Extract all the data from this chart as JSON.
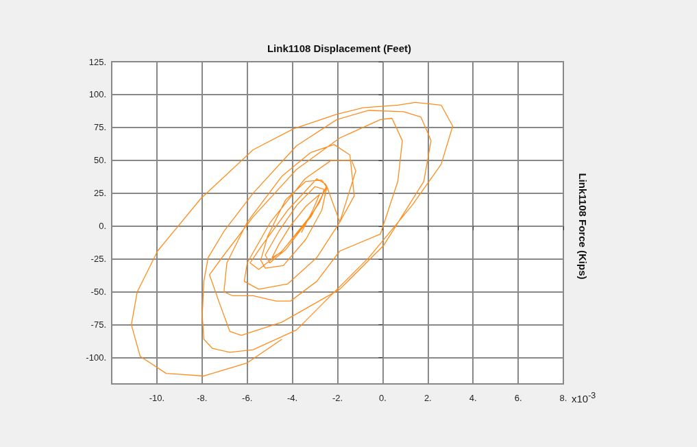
{
  "chart_data": {
    "type": "line",
    "title": "Link1108 Displacement (Feet)",
    "ylabel": "Link1108 Force (Kips)",
    "annotations": [
      "x10$^{-3}$"
    ],
    "xlim": [
      -12,
      8
    ],
    "xticks": [
      {
        "value": -10,
        "label": "-10."
      },
      {
        "value": -8,
        "label": "-8."
      },
      {
        "value": -6,
        "label": "-6."
      },
      {
        "value": -4,
        "label": "-4."
      },
      {
        "value": -2,
        "label": "-2."
      },
      {
        "value": 0,
        "label": "0."
      },
      {
        "value": 2,
        "label": "2."
      },
      {
        "value": 4,
        "label": "4."
      },
      {
        "value": 6,
        "label": "6."
      },
      {
        "value": 8,
        "label": "8."
      }
    ],
    "ylim": [
      -120,
      125
    ],
    "yticks": [
      {
        "value": -100,
        "label": "-100."
      },
      {
        "value": -75,
        "label": "-75."
      },
      {
        "value": -50,
        "label": "-50."
      },
      {
        "value": -25,
        "label": "-25."
      },
      {
        "value": 0,
        "label": "0."
      },
      {
        "value": 25,
        "label": "25."
      },
      {
        "value": 50,
        "label": "50."
      },
      {
        "value": 75,
        "label": "75."
      },
      {
        "value": 100,
        "label": "100."
      },
      {
        "value": 125,
        "label": "125."
      }
    ],
    "grid": true,
    "marker": "none",
    "line_style": "solid",
    "series": [
      {
        "color": "#ff8c1a",
        "x": [
          -3.6,
          -3.1,
          -2.8,
          -3.4,
          -4.1,
          -4.6,
          -4.9,
          -4.5,
          -3.8,
          -3.1,
          -2.7,
          -2.6,
          -3.0,
          -3.8,
          -4.6,
          -5.2,
          -5.0,
          -4.3,
          -3.5,
          -2.8,
          -2.5,
          -2.7,
          -3.4,
          -4.3,
          -5.1,
          -5.4,
          -5.2,
          -4.4,
          -3.4,
          -2.7,
          -2.47,
          -2.54,
          -2.92,
          -4.21,
          -5.36,
          -5.87,
          -5.49,
          -4.46,
          -3.18,
          -2.47,
          -1.9,
          -1.19,
          -1.38,
          -2.28,
          -3.44,
          -4.97,
          -6.0,
          -6.13,
          -5.49,
          -4.21,
          -2.92,
          -1.9,
          -1.26,
          -1.45,
          -2.15,
          -3.18,
          -4.46,
          -6.0,
          -6.9,
          -7.03,
          -6.64,
          -5.74,
          -4.72,
          -4.08,
          -2.92,
          -1.9,
          -0.1,
          0.67,
          0.87,
          0.41,
          -0.1,
          -1.9,
          -3.82,
          -5.74,
          -7.03,
          -7.67,
          -7.2,
          -6.77,
          -6.26,
          -4.46,
          -1.9,
          0.03,
          1.82,
          2.14,
          1.69,
          0.92,
          -0.62,
          -2.03,
          -3.82,
          -5.74,
          -7.03,
          -7.73,
          -7.92,
          -7.99,
          -7.92,
          -7.54,
          -6.77,
          -5.74,
          -3.82,
          -2.54,
          -0.62,
          1.31,
          2.59,
          3.1,
          2.59,
          1.44,
          0.67,
          -0.87,
          -2.03,
          -3.95,
          -5.74,
          -8.05,
          -9.97,
          -10.87,
          -11.13,
          -10.74,
          -9.59,
          -7.92,
          -6.0,
          -4.46
        ],
        "values": [
          -5,
          12,
          24,
          15,
          0,
          -14,
          -24,
          -20,
          -5,
          10,
          22,
          28,
          30,
          16,
          -4,
          -22,
          -28,
          -18,
          0,
          18,
          30,
          35,
          34,
          20,
          -8,
          -26,
          -32,
          -30,
          -10,
          12,
          30,
          32,
          36,
          12,
          -15,
          -28,
          -33,
          -19,
          7,
          30,
          3,
          42,
          50,
          50,
          36,
          3,
          -28,
          -42,
          -48,
          -44,
          -24,
          3,
          23,
          54,
          62,
          56,
          38,
          3,
          -28,
          -50,
          -53,
          -53,
          -57,
          -57,
          -42,
          -19,
          -6,
          34,
          65,
          82,
          81,
          67,
          43,
          7,
          -22,
          -37,
          -60,
          -80,
          -83,
          -73,
          -48,
          -15,
          34,
          65,
          83,
          87,
          88,
          81,
          61,
          25,
          -4,
          -24,
          -42,
          -68,
          -86,
          -93,
          -96,
          -94,
          -79,
          -57,
          -24,
          16,
          47,
          76,
          92,
          94,
          92,
          90,
          85,
          74,
          58,
          21,
          -19,
          -50,
          -75,
          -99,
          -112,
          -114,
          -104,
          -86
        ]
      }
    ]
  }
}
